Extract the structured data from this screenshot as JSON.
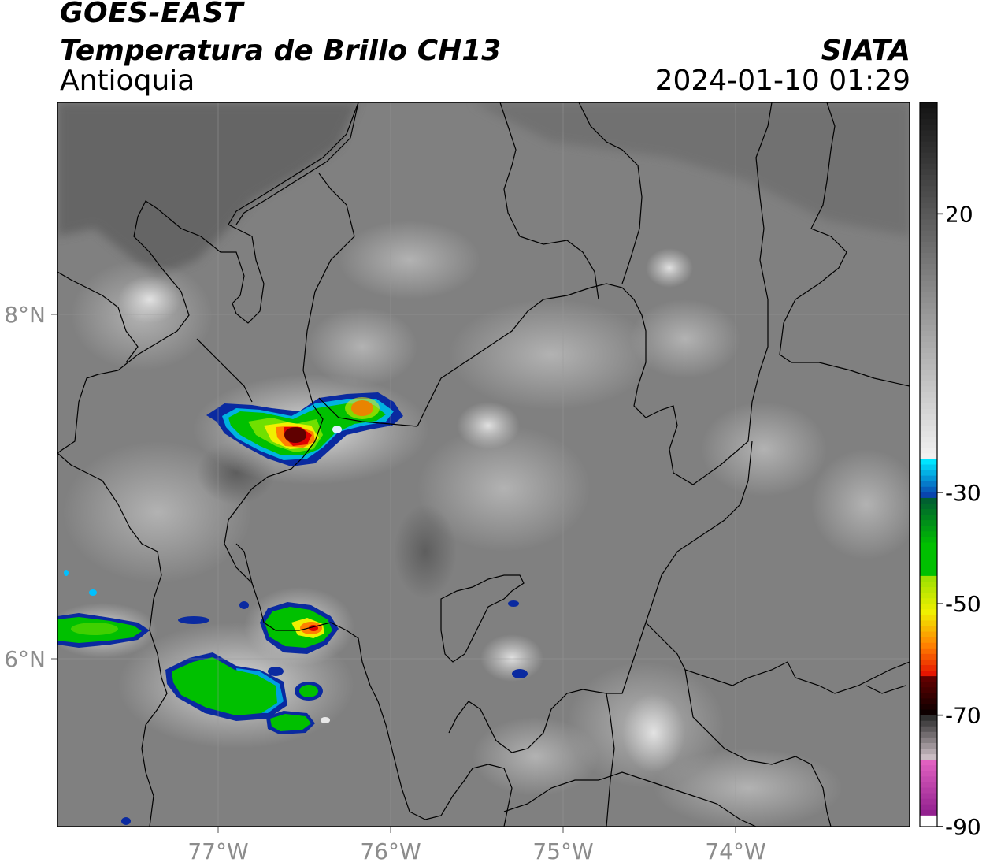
{
  "header": {
    "satellite": "GOES-EAST",
    "product": "Temperatura de Brillo CH13",
    "region": "Antioquia",
    "organization": "SIATA",
    "datetime": "2024-01-10 01:29"
  },
  "map": {
    "lon_ticks": [
      {
        "value": -77,
        "label": "77°W"
      },
      {
        "value": -76,
        "label": "76°W"
      },
      {
        "value": -75,
        "label": "75°W"
      },
      {
        "value": -74,
        "label": "74°W"
      }
    ],
    "lat_ticks": [
      {
        "value": 8,
        "label": "8°N"
      },
      {
        "value": 6,
        "label": "6°N"
      }
    ],
    "extent": {
      "lon_min": -77.94,
      "lon_max": -73.0,
      "lat_min": 5.46,
      "lat_max": 9.22
    }
  },
  "colorbar": {
    "min": -90,
    "max": 40,
    "ticks": [
      {
        "value": 20,
        "label": "20"
      },
      {
        "value": -30,
        "label": "-30"
      },
      {
        "value": -50,
        "label": "-50"
      },
      {
        "value": -70,
        "label": "-70"
      },
      {
        "value": -90,
        "label": "-90"
      }
    ],
    "colors": {
      "gray_warm": "#141414",
      "gray_cold": "#f5f5f5",
      "cyan": "#00e5ff",
      "blue": "#0a2aa0",
      "green": "#00c000",
      "yellow": "#f0f000",
      "orange": "#ff8000",
      "red": "#e00000",
      "dark_red": "#600000",
      "pink": "#e060c0",
      "purple": "#8a1a8a"
    }
  }
}
